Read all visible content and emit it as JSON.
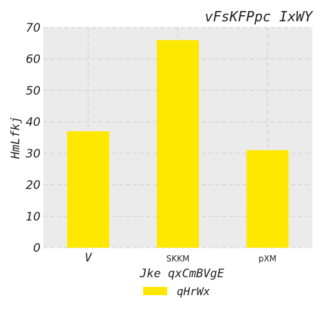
{
  "chart_data": {
    "type": "bar",
    "title": "vFsKFPpc IxWY",
    "xlabel": "Jke  qxCmBVgE",
    "ylabel": "HmLfkj",
    "categories": [
      "V",
      "SKKM",
      "pXM"
    ],
    "series": [
      {
        "name": "qHrWx",
        "values": [
          37,
          66,
          31
        ],
        "color": "#ffe800"
      }
    ],
    "ylim": [
      0,
      70
    ],
    "yticks": [
      0,
      10,
      20,
      30,
      40,
      50,
      60,
      70
    ],
    "grid": true,
    "legend_position": "bottom-center",
    "plot_background": "#ebebeb",
    "grid_color": "#cccccc"
  }
}
